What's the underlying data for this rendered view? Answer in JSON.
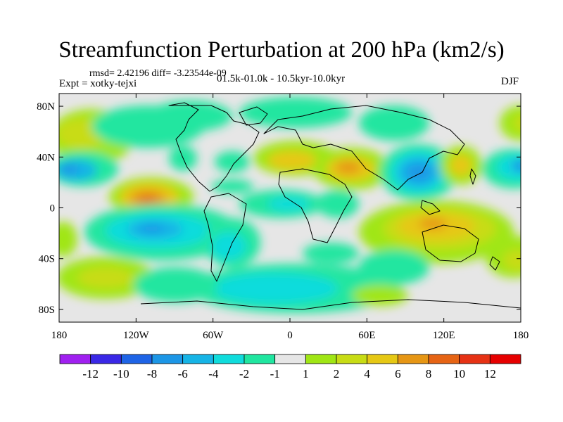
{
  "title": "Streamfunction Perturbation at 200 hPa (km2/s)",
  "stats_line": "rmsd= 2.42196 diff= -3.23544e-09",
  "experiment_line": "Expt = xotky-tejxi",
  "period_line": "01.5k-01.0k - 10.5kyr-10.0kyr",
  "season": "DJF",
  "colors": {
    "background": "#ffffff",
    "neutral": "#e6e6e6",
    "land_outline": "#000000"
  },
  "x_axis": {
    "range": [
      -180,
      180
    ],
    "ticks": [
      {
        "lon": -180,
        "label": "180"
      },
      {
        "lon": -120,
        "label": "120W"
      },
      {
        "lon": -60,
        "label": "60W"
      },
      {
        "lon": 0,
        "label": "0"
      },
      {
        "lon": 60,
        "label": "60E"
      },
      {
        "lon": 120,
        "label": "120E"
      },
      {
        "lon": 180,
        "label": "180"
      }
    ]
  },
  "y_axis": {
    "range": [
      -90,
      90
    ],
    "ticks": [
      {
        "lat": 80,
        "label": "80N"
      },
      {
        "lat": 40,
        "label": "40N"
      },
      {
        "lat": 0,
        "label": "0"
      },
      {
        "lat": -40,
        "label": "40S"
      },
      {
        "lat": -80,
        "label": "80S"
      }
    ]
  },
  "colorbar": {
    "levels": [
      "-12",
      "-10",
      "-8",
      "-6",
      "-4",
      "-2",
      "-1",
      "1",
      "2",
      "4",
      "6",
      "8",
      "10",
      "12"
    ],
    "colors": [
      "#a020f0",
      "#3a28e6",
      "#1e64e6",
      "#1c96e6",
      "#16b4e6",
      "#10dcdc",
      "#20e6a0",
      "#e6e6e6",
      "#a0e614",
      "#c8dc14",
      "#e6c814",
      "#e69614",
      "#e66414",
      "#e63214",
      "#e60000"
    ]
  },
  "chart_data": {
    "type": "heatmap",
    "variable": "Streamfunction Perturbation",
    "units": "km2/s",
    "level": "200 hPa",
    "season": "DJF",
    "contour_levels": [
      -12,
      -10,
      -8,
      -6,
      -4,
      -2,
      -1,
      1,
      2,
      4,
      6,
      8,
      10,
      12
    ],
    "features": [
      {
        "name": "central-pacific-low-north",
        "lon": -175,
        "lat": 30,
        "value": -6
      },
      {
        "name": "eastern-pacific-high",
        "lon": -108,
        "lat": 5,
        "value": 9
      },
      {
        "name": "south-pacific-low",
        "lon": -112,
        "lat": -20,
        "value": -8
      },
      {
        "name": "south-america-low",
        "lon": -55,
        "lat": -30,
        "value": -5
      },
      {
        "name": "atlantic-low",
        "lon": -15,
        "lat": 0,
        "value": -3
      },
      {
        "name": "north-atlantic-high",
        "lon": -5,
        "lat": 35,
        "value": 4
      },
      {
        "name": "arabia-high",
        "lon": 45,
        "lat": 28,
        "value": 6
      },
      {
        "name": "asia-low",
        "lon": 95,
        "lat": 28,
        "value": -7
      },
      {
        "name": "east-asia-high",
        "lon": 130,
        "lat": 35,
        "value": 4
      },
      {
        "name": "northwest-pacific-low",
        "lon": 165,
        "lat": 28,
        "value": -6
      },
      {
        "name": "australia-high",
        "lon": 100,
        "lat": -15,
        "value": 6
      },
      {
        "name": "south-pacific-high",
        "lon": 175,
        "lat": -25,
        "value": 4
      },
      {
        "name": "southern-ocean-low",
        "lon": -10,
        "lat": -65,
        "value": -3
      },
      {
        "name": "southeast-pacific-high",
        "lon": -160,
        "lat": -55,
        "value": 4
      }
    ]
  }
}
